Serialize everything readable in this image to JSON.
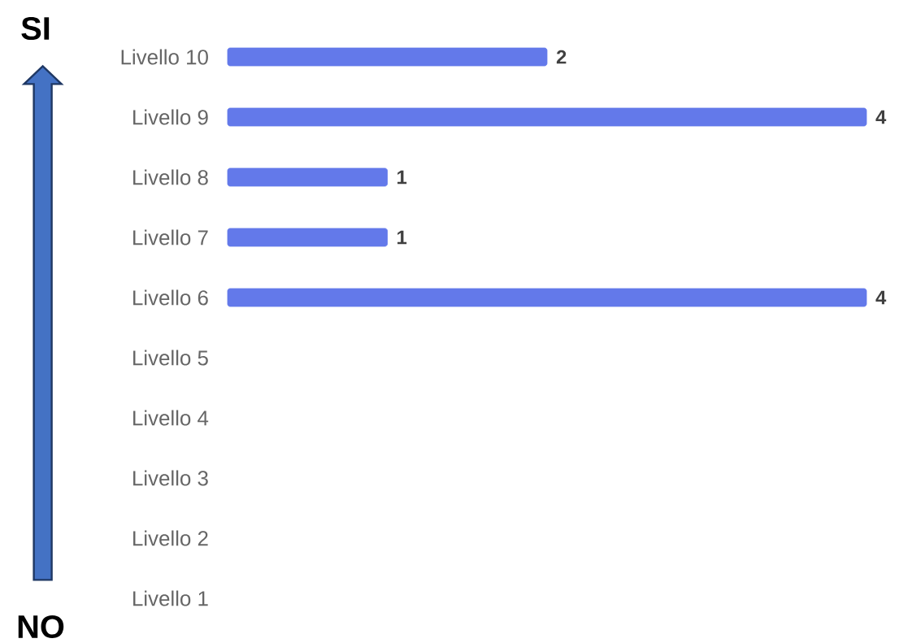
{
  "chart_data": {
    "type": "bar",
    "orientation": "horizontal",
    "categories": [
      "Livello 10",
      "Livello 9",
      "Livello 8",
      "Livello 7",
      "Livello 6",
      "Livello 5",
      "Livello 4",
      "Livello 3",
      "Livello 2",
      "Livello 1"
    ],
    "values": [
      2,
      4,
      1,
      1,
      4,
      null,
      null,
      null,
      null,
      null
    ],
    "color": "#6379ea",
    "xlim": [
      0,
      4
    ],
    "data_labels": true,
    "annotations": [
      "SI",
      "NO"
    ]
  }
}
